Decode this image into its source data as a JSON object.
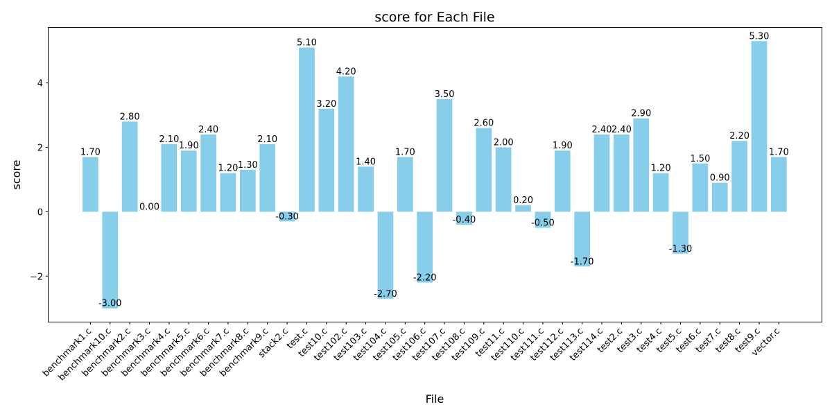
{
  "chart_data": {
    "type": "bar",
    "title": "score for Each File",
    "xlabel": "File",
    "ylabel": "score",
    "categories": [
      "benchmark1.c",
      "benchmark10.c",
      "benchmark2.c",
      "benchmark3.c",
      "benchmark4.c",
      "benchmark5.c",
      "benchmark6.c",
      "benchmark7.c",
      "benchmark8.c",
      "benchmark9.c",
      "stack2.c",
      "test.c",
      "test10.c",
      "test102.c",
      "test103.c",
      "test104.c",
      "test105.c",
      "test106.c",
      "test107.c",
      "test108.c",
      "test109.c",
      "test11.c",
      "test110.c",
      "test111.c",
      "test112.c",
      "test113.c",
      "test114.c",
      "test2.c",
      "test3.c",
      "test4.c",
      "test5.c",
      "test6.c",
      "test7.c",
      "test8.c",
      "test9.c",
      "vector.c"
    ],
    "values": [
      1.7,
      -3.0,
      2.8,
      0.0,
      2.1,
      1.9,
      2.4,
      1.2,
      1.3,
      2.1,
      -0.3,
      5.1,
      3.2,
      4.2,
      1.4,
      -2.7,
      1.7,
      -2.2,
      3.5,
      -0.4,
      2.6,
      2.0,
      0.2,
      -0.5,
      1.9,
      -1.7,
      2.4,
      2.4,
      2.9,
      1.2,
      -1.3,
      1.5,
      0.9,
      2.2,
      5.3,
      1.7
    ],
    "data_labels": [
      "1.70",
      "-3.00",
      "2.80",
      "0.00",
      "2.10",
      "1.90",
      "2.40",
      "1.20",
      "1.30",
      "2.10",
      "-0.30",
      "5.10",
      "3.20",
      "4.20",
      "1.40",
      "-2.70",
      "1.70",
      "-2.20",
      "3.50",
      "-0.40",
      "2.60",
      "2.00",
      "0.20",
      "-0.50",
      "1.90",
      "-1.70",
      "2.40",
      "2.40",
      "2.90",
      "1.20",
      "-1.30",
      "1.50",
      "0.90",
      "2.20",
      "5.30",
      "1.70"
    ],
    "ylim": [
      -3.415,
      5.715
    ],
    "yticks": [
      -2,
      0,
      2,
      4
    ],
    "ytick_labels": [
      "−2",
      "0",
      "2",
      "4"
    ],
    "bar_color": "#87CEEB",
    "grid": false,
    "legend": "none"
  }
}
